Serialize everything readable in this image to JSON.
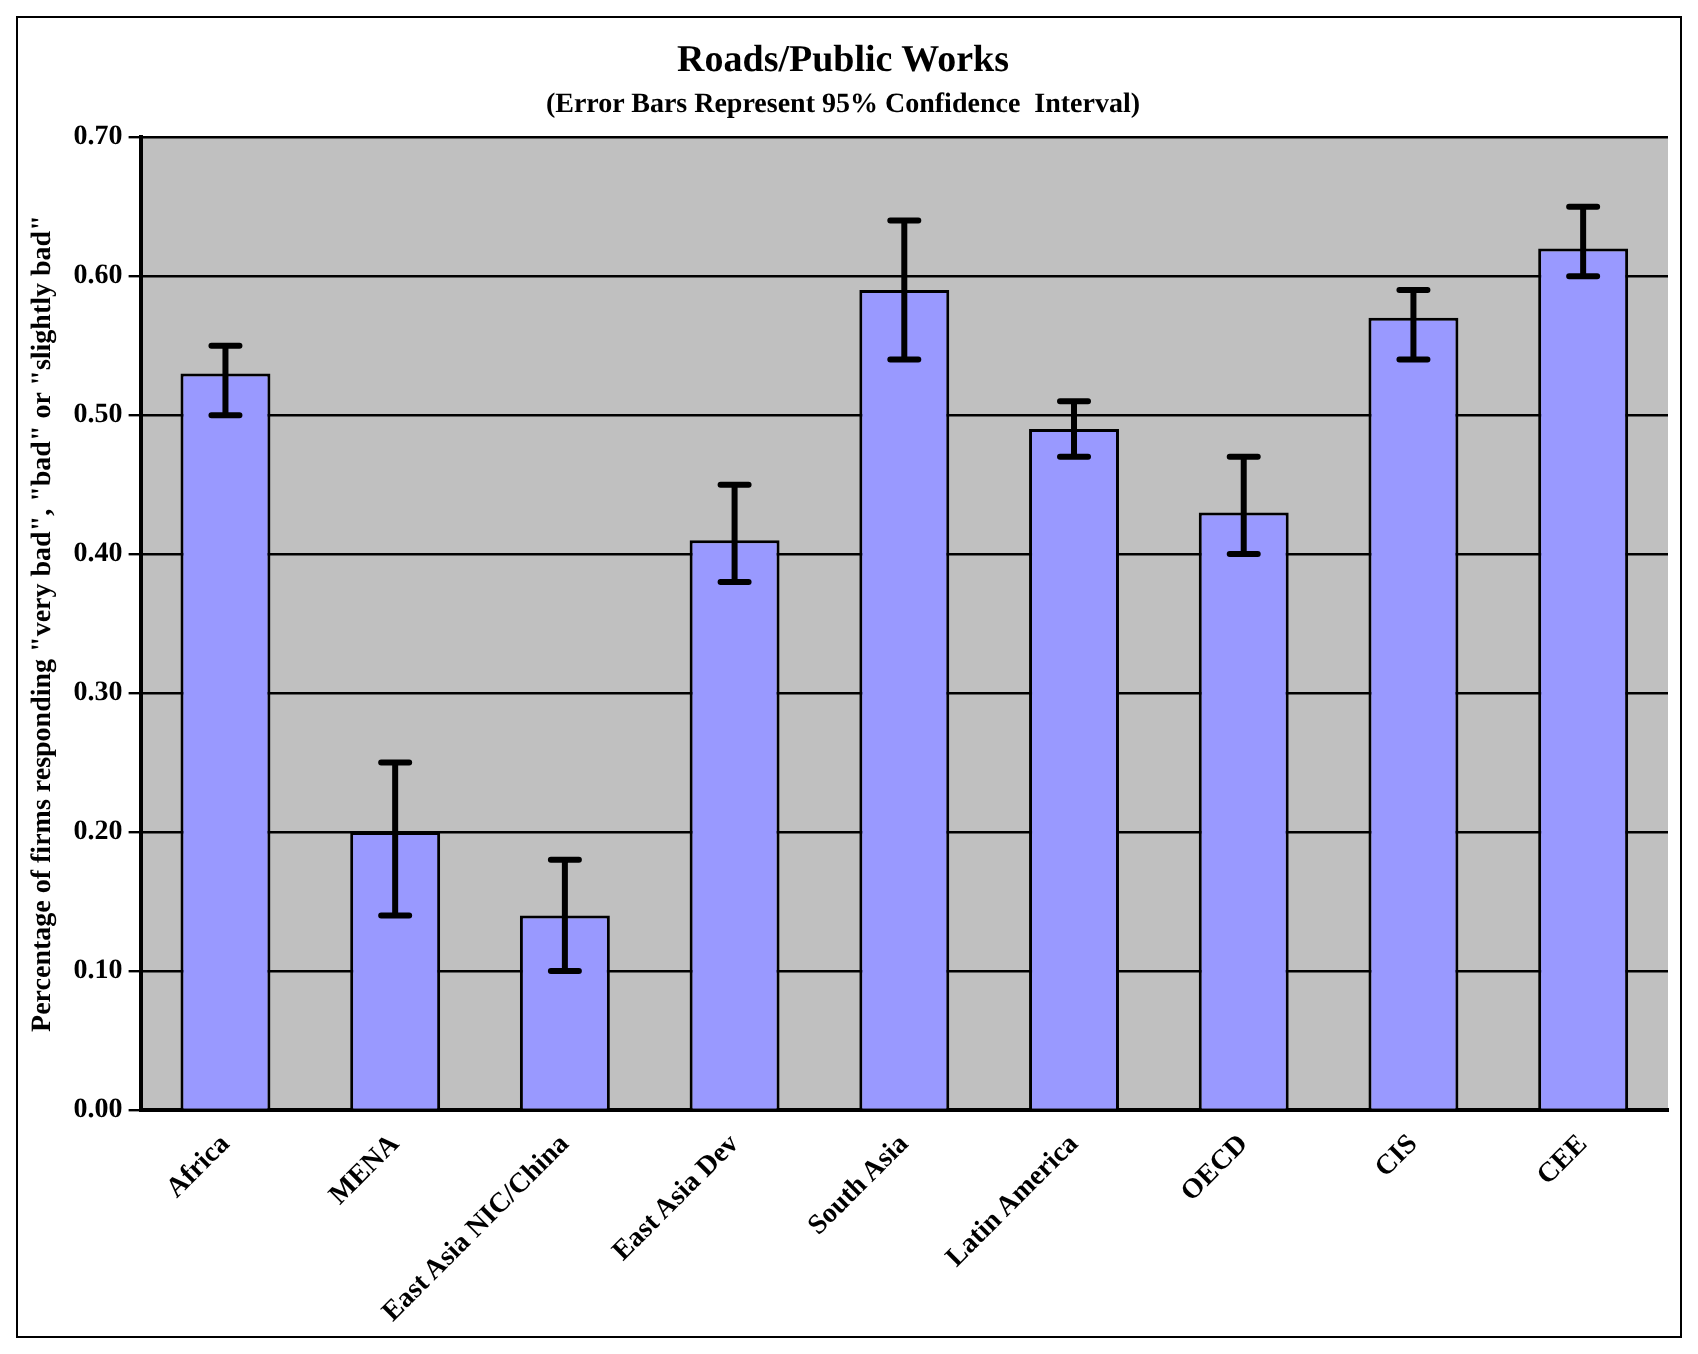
{
  "chart_data": {
    "type": "bar",
    "title": "Roads/Public Works",
    "subtitle": "(Error Bars Represent 95% Confidence  Interval)",
    "ylabel": "Percentage of firms responding \"very bad\", \"bad\" or \"slightly bad\"",
    "categories": [
      "Africa",
      "MENA",
      "East Asia NIC/China",
      "East Asia Dev",
      "South Asia",
      "Latin America",
      "OECD",
      "CIS",
      "CEE"
    ],
    "values": [
      0.53,
      0.2,
      0.14,
      0.41,
      0.59,
      0.49,
      0.43,
      0.57,
      0.62
    ],
    "errors": [
      [
        0.5,
        0.55
      ],
      [
        0.14,
        0.25
      ],
      [
        0.1,
        0.18
      ],
      [
        0.38,
        0.45
      ],
      [
        0.54,
        0.64
      ],
      [
        0.47,
        0.51
      ],
      [
        0.4,
        0.47
      ],
      [
        0.54,
        0.59
      ],
      [
        0.6,
        0.65
      ]
    ],
    "color": "#9999ff",
    "ylim": [
      0,
      0.7
    ],
    "yticks": [
      {
        "value": 0,
        "label": "0.00"
      },
      {
        "value": 0.1,
        "label": "0.10"
      },
      {
        "value": 0.2,
        "label": "0.20"
      },
      {
        "value": 0.3,
        "label": "0.30"
      },
      {
        "value": 0.4,
        "label": "0.40"
      },
      {
        "value": 0.5,
        "label": "0.50"
      },
      {
        "value": 0.6,
        "label": "0.60"
      },
      {
        "value": 0.7,
        "label": "0.70"
      }
    ],
    "grid": "y",
    "legend": false
  }
}
